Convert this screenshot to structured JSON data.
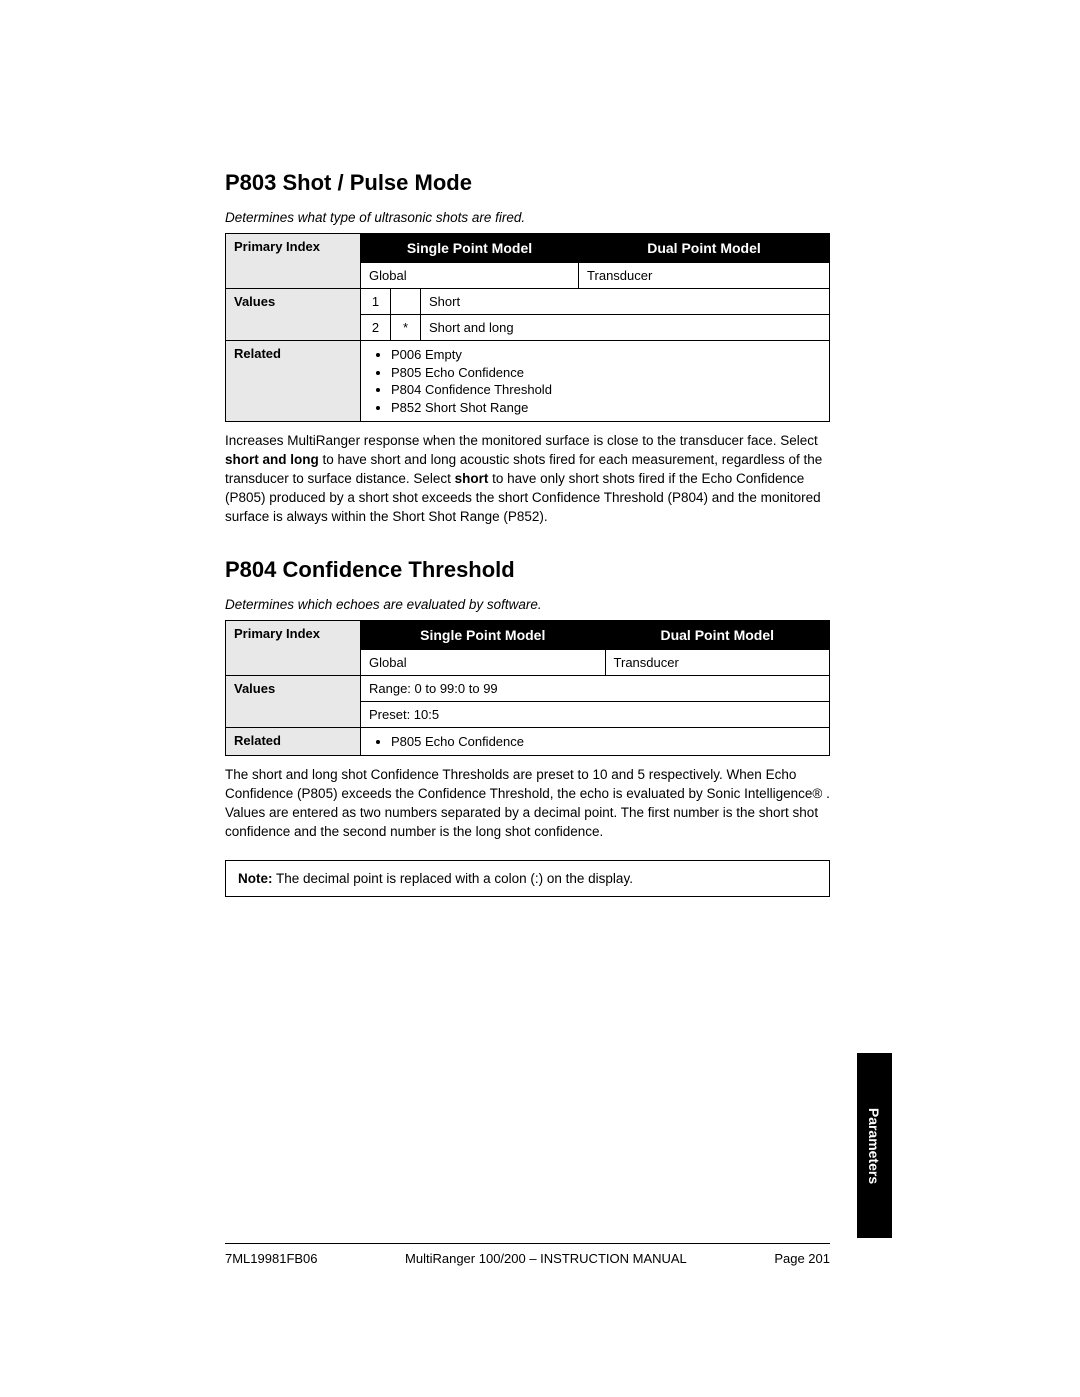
{
  "section1": {
    "heading": "P803 Shot / Pulse Mode",
    "desc": "Determines what type of ultrasonic shots are fired.",
    "col1": "Single Point Model",
    "col2": "Dual Point Model",
    "row_primary_label": "Primary Index",
    "row_primary_v1": "Global",
    "row_primary_v2": "Transducer",
    "row_values_label": "Values",
    "val1_num": "1",
    "val1_star": "",
    "val1_text": "Short",
    "val2_num": "2",
    "val2_star": "*",
    "val2_text": "Short and long",
    "row_related_label": "Related",
    "related": [
      "P006 Empty",
      "P805 Echo Confidence",
      "P804 Confidence Threshold",
      "P852 Short Shot Range"
    ],
    "body": "Increases MultiRanger response when the monitored surface is close to the transducer face. Select short and long to have short and long acoustic shots fired for each measurement, regardless of the transducer to surface distance. Select short to have only short shots fired if the Echo Confidence (P805) produced by a short shot exceeds the short Confidence Threshold (P804) and the monitored surface is always within the Short Shot Range (P852)."
  },
  "section2": {
    "heading": "P804 Confidence Threshold",
    "desc": "Determines which echoes are evaluated by software.",
    "col1": "Single Point Model",
    "col2": "Dual Point Model",
    "row_primary_label": "Primary Index",
    "row_primary_v1": "Global",
    "row_primary_v2": "Transducer",
    "row_values_label": "Values",
    "val_range": "Range: 0 to 99:0 to 99",
    "val_preset": "Preset: 10:5",
    "row_related_label": "Related",
    "related": [
      "P805 Echo Confidence"
    ],
    "body": "The short and long shot Confidence Thresholds are preset to 10 and 5 respectively. When Echo Confidence (P805) exceeds the Confidence Threshold, the echo is evaluated by Sonic Intelligence® . Values are entered as two numbers separated by a decimal point. The first number is the short shot confidence and the second number is the long shot confidence.",
    "note_label": "Note:",
    "note_text": " The decimal point is replaced with a colon (:) on the display."
  },
  "sidetab": "Parameters",
  "footer": {
    "left": "7ML19981FB06",
    "center": "MultiRanger 100/200 – INSTRUCTION MANUAL",
    "right": "Page 201"
  }
}
